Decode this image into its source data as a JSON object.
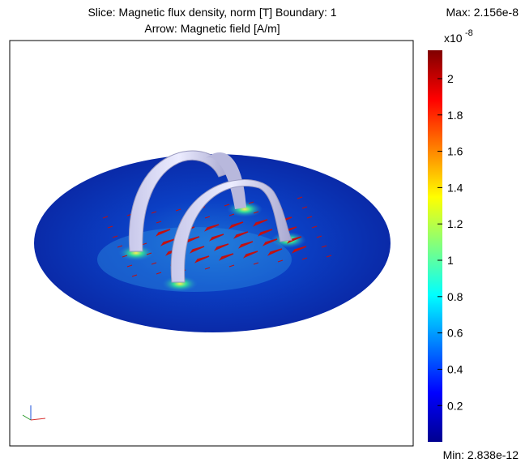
{
  "plot": {
    "title_line1": "Slice: Magnetic flux density, norm [T]   Boundary: 1",
    "title_line2": "Arrow: Magnetic field [A/m]",
    "max_label": "Max: 2.156e-8",
    "min_label": "Min: 2.838e-12",
    "colorbar": {
      "exponent_base": "x10",
      "exponent": "-8",
      "clim": [
        0.0002838,
        2.156
      ],
      "ticks": [
        0.2,
        0.4,
        0.6,
        0.8,
        1,
        1.2,
        1.4,
        1.6,
        1.8,
        2
      ]
    }
  }
}
